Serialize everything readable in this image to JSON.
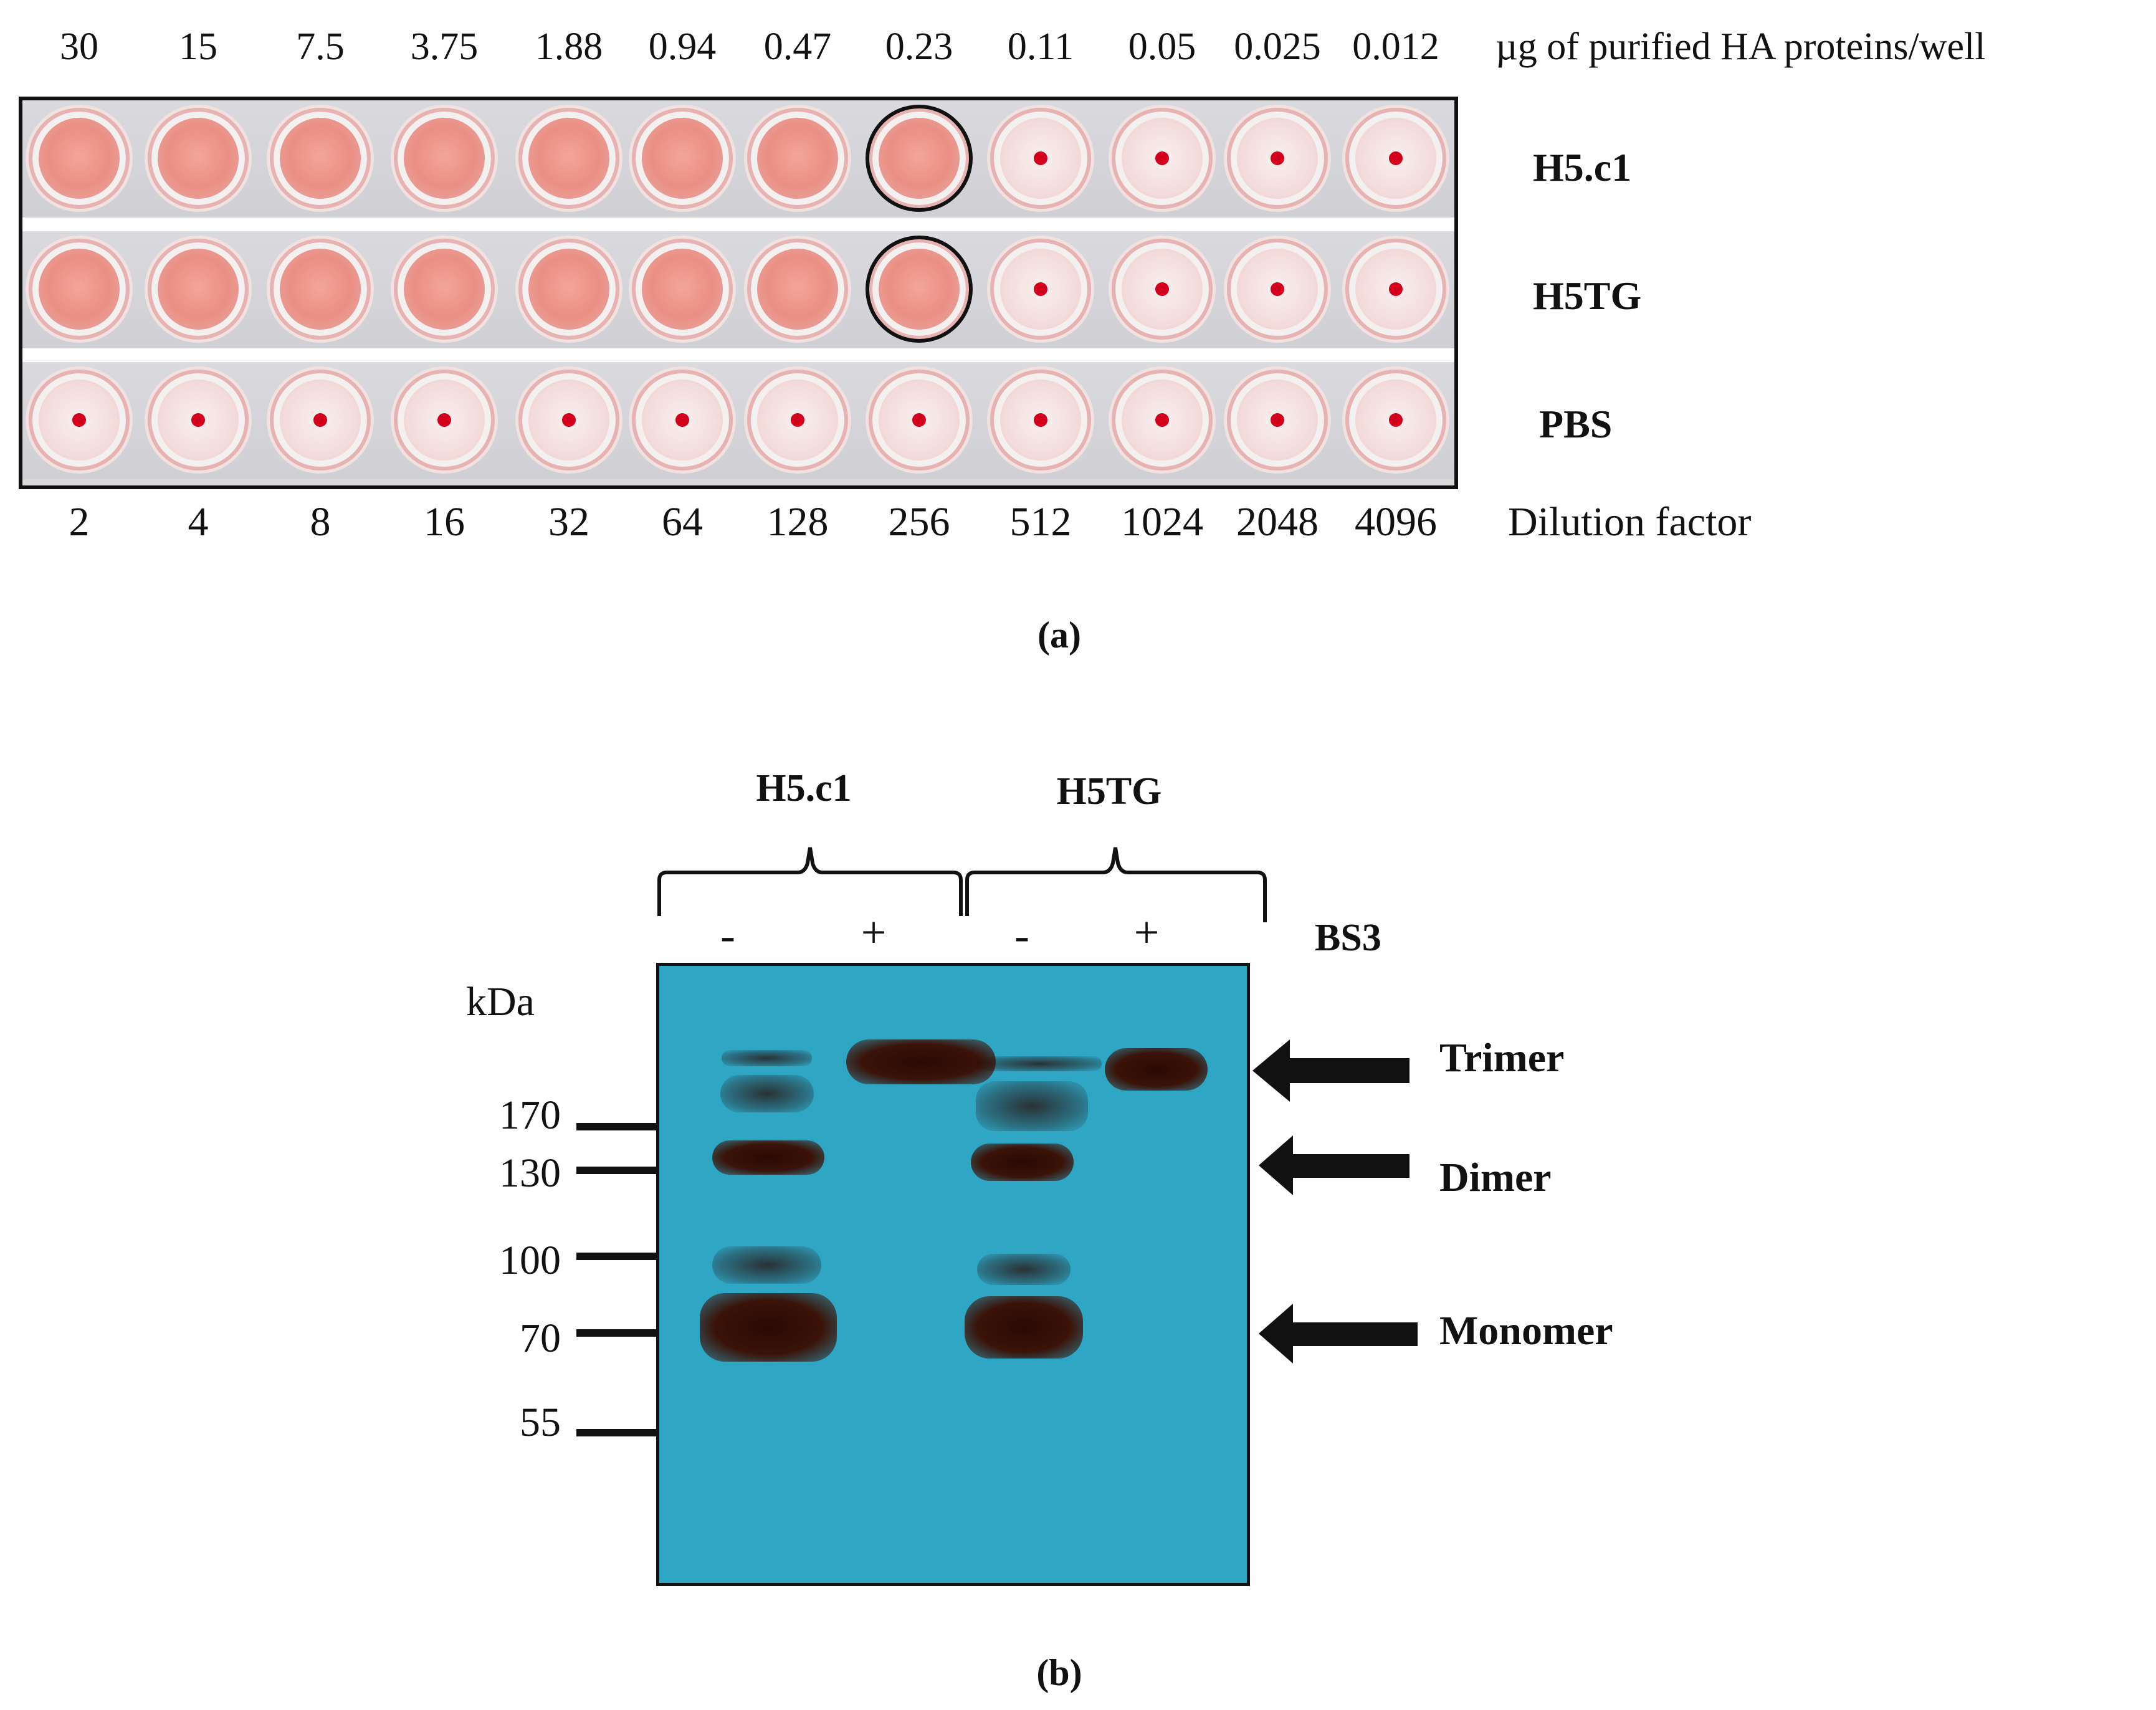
{
  "panel_a": {
    "amounts": [
      "30",
      "15",
      "7.5",
      "3.75",
      "1.88",
      "0.94",
      "0.47",
      "0.23",
      "0.11",
      "0.05",
      "0.025",
      "0.012"
    ],
    "amount_unit": "µg of purified HA proteins/well",
    "dilutions": [
      "2",
      "4",
      "8",
      "16",
      "32",
      "64",
      "128",
      "256",
      "512",
      "1024",
      "2048",
      "4096"
    ],
    "dilution_unit": "Dilution factor",
    "rows": [
      {
        "label": "H5.c1",
        "agglutinated_wells": 8
      },
      {
        "label": "H5TG",
        "agglutinated_wells": 8
      },
      {
        "label": "PBS",
        "agglutinated_wells": 0
      }
    ],
    "endpoint_column": 8,
    "positive_color": "#eb8f84",
    "button_color": "#d1001c",
    "caption": "(a)"
  },
  "panel_b": {
    "kda_label": "kDa",
    "markers": [
      "170",
      "130",
      "100",
      "70",
      "55"
    ],
    "samples": [
      "H5.c1",
      "H5TG"
    ],
    "lanes": [
      "-",
      "+",
      "-",
      "+"
    ],
    "crosslinker": "BS3",
    "species": [
      "Trimer",
      "Dimer",
      "Monomer"
    ],
    "membrane_color": "#2ea6c4",
    "caption": "(b)"
  }
}
